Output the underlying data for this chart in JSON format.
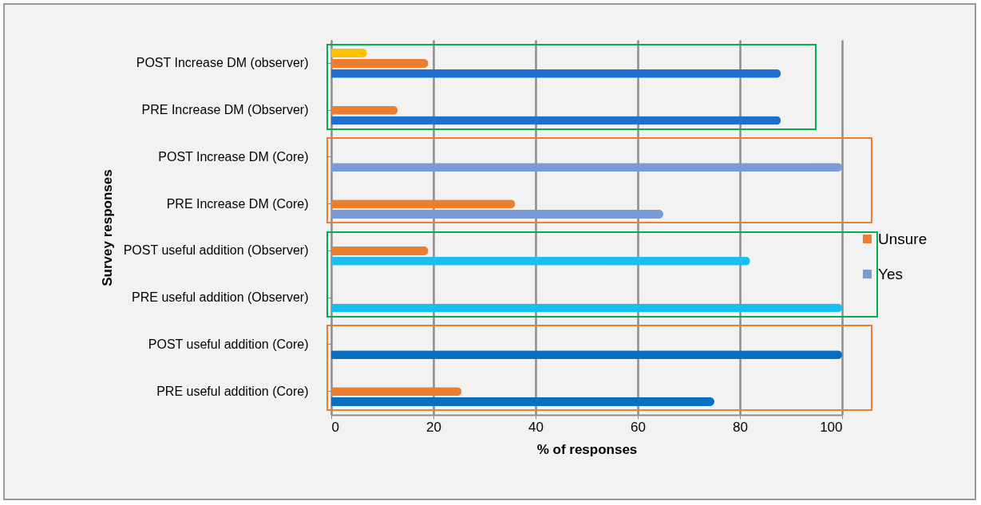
{
  "chart_data": {
    "type": "bar",
    "orientation": "horizontal",
    "xlabel": "% of responses",
    "ylabel": "Survey responses",
    "categories": [
      "POST Increase DM (observer)",
      "PRE Increase DM (Observer)",
      "POST Increase DM (Core)",
      "PRE Increase DM (Core)",
      "POST useful addition (Observer)",
      "PRE useful addition (Observer)",
      "POST useful addition (Core)",
      "PRE useful addition (Core)"
    ],
    "series": [
      {
        "name": "Yes",
        "color": "#7b9bd6",
        "colors": [
          "#1f6fd1",
          "#1f6fd1",
          "#7b9bd6",
          "#7b9bd6",
          "#19bff2",
          "#19bff2",
          "#0a6fc0",
          "#0a6fc0"
        ],
        "values": [
          88,
          88,
          100,
          65,
          82,
          100,
          100,
          75
        ]
      },
      {
        "name": "Unsure",
        "color": "#ed7d31",
        "values": [
          19,
          13,
          0,
          36,
          19,
          0,
          0,
          25.5
        ]
      },
      {
        "color": "#ffc000",
        "values": [
          7,
          null,
          null,
          null,
          null,
          null,
          null,
          null
        ]
      }
    ],
    "xlim": [
      0,
      100
    ],
    "xticks": [
      0,
      20,
      40,
      60,
      80,
      100
    ],
    "grid": "x",
    "legend": "right"
  }
}
